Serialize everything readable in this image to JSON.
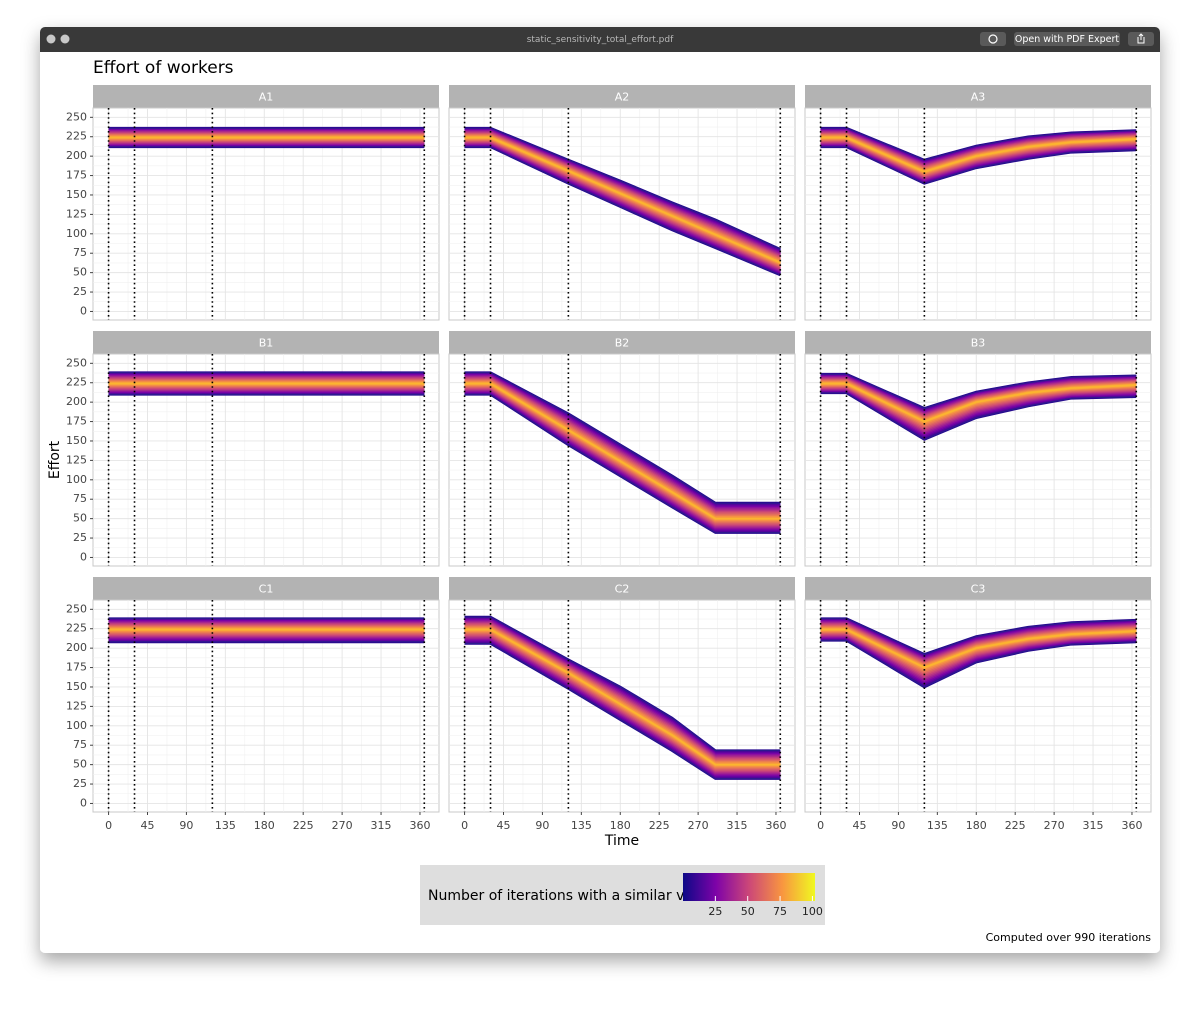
{
  "window": {
    "title": "static_sensitivity_total_effort.pdf",
    "button": "Open with PDF Expert"
  },
  "chart_data": {
    "type": "line",
    "title": "Effort of workers",
    "x_label": "Time",
    "y_label": "Effort",
    "xlim": [
      -18,
      382
    ],
    "ylim": [
      -11,
      262
    ],
    "xticks": [
      0,
      45,
      90,
      135,
      180,
      225,
      270,
      315,
      360
    ],
    "yticks": [
      0,
      25,
      50,
      75,
      100,
      125,
      150,
      175,
      200,
      225,
      250
    ],
    "vlines": [
      0,
      30,
      120,
      365
    ],
    "grid": true,
    "colorscale": [
      "#0d0887",
      "#7e03a8",
      "#cc4778",
      "#f89540",
      "#f0f921"
    ],
    "legend": {
      "title": "Number of iterations with a similar value",
      "lim": [
        0,
        102
      ],
      "ticks": [
        25,
        50,
        75,
        100
      ]
    },
    "caption": "Computed over 990 iterations",
    "x": [
      0,
      30,
      120,
      180,
      240,
      290,
      365
    ],
    "panels": [
      {
        "title": "A1",
        "series": [
          {
            "color": "#2b1d8f",
            "values": [
              212,
              212,
              212,
              212,
              212,
              212,
              212
            ]
          },
          {
            "color": "#fdb42f",
            "values": [
              224,
              224,
              224,
              224,
              224,
              224,
              224
            ]
          },
          {
            "color": "#2b1d8f",
            "values": [
              236,
              236,
              236,
              236,
              236,
              236,
              236
            ]
          }
        ]
      },
      {
        "title": "A2",
        "series": [
          {
            "color": "#2b1d8f",
            "values": [
              212,
              212,
              165,
              135,
              105,
              82,
              47
            ]
          },
          {
            "color": "#fdb42f",
            "values": [
              224,
              224,
              181,
              152,
              123,
              99,
              63
            ]
          },
          {
            "color": "#2b1d8f",
            "values": [
              236,
              236,
              195,
              168,
              140,
              118,
              80
            ]
          }
        ]
      },
      {
        "title": "A3",
        "series": [
          {
            "color": "#2b1d8f",
            "values": [
              212,
              212,
              165,
              185,
              197,
              205,
              208
            ]
          },
          {
            "color": "#fdb42f",
            "values": [
              224,
              224,
              180,
              200,
              212,
              218,
              222
            ]
          },
          {
            "color": "#2b1d8f",
            "values": [
              236,
              236,
              195,
              213,
              225,
              230,
              233
            ]
          }
        ]
      },
      {
        "title": "B1",
        "series": [
          {
            "color": "#2b1d8f",
            "values": [
              210,
              210,
              210,
              210,
              210,
              210,
              210
            ]
          },
          {
            "color": "#fdb42f",
            "values": [
              224,
              224,
              224,
              224,
              224,
              224,
              224
            ]
          },
          {
            "color": "#2b1d8f",
            "values": [
              238,
              238,
              238,
              238,
              238,
              238,
              238
            ]
          }
        ]
      },
      {
        "title": "B2",
        "series": [
          {
            "color": "#2b1d8f",
            "values": [
              210,
              210,
              145,
              105,
              65,
              32,
              32
            ]
          },
          {
            "color": "#fdb42f",
            "values": [
              224,
              224,
              164,
              124,
              84,
              50,
              50
            ]
          },
          {
            "color": "#2b1d8f",
            "values": [
              238,
              238,
              185,
              145,
              105,
              70,
              70
            ]
          }
        ]
      },
      {
        "title": "B3",
        "series": [
          {
            "color": "#2b1d8f",
            "values": [
              212,
              212,
              152,
              180,
              195,
              205,
              207
            ]
          },
          {
            "color": "#fdb42f",
            "values": [
              224,
              224,
              175,
              200,
              212,
              218,
              222
            ]
          },
          {
            "color": "#2b1d8f",
            "values": [
              236,
              236,
              192,
              213,
              225,
              232,
              234
            ]
          }
        ]
      },
      {
        "title": "C1",
        "series": [
          {
            "color": "#2b1d8f",
            "values": [
              208,
              208,
              208,
              208,
              208,
              208,
              208
            ]
          },
          {
            "color": "#fdb42f",
            "values": [
              224,
              224,
              224,
              224,
              224,
              224,
              224
            ]
          },
          {
            "color": "#2b1d8f",
            "values": [
              238,
              238,
              238,
              238,
              238,
              238,
              238
            ]
          }
        ]
      },
      {
        "title": "C2",
        "series": [
          {
            "color": "#2b1d8f",
            "values": [
              206,
              206,
              148,
              108,
              68,
              32,
              32
            ]
          },
          {
            "color": "#fdb42f",
            "values": [
              224,
              224,
              168,
              128,
              88,
              50,
              50
            ]
          },
          {
            "color": "#2b1d8f",
            "values": [
              240,
              240,
              185,
              150,
              110,
              68,
              68
            ]
          }
        ]
      },
      {
        "title": "C3",
        "series": [
          {
            "color": "#2b1d8f",
            "values": [
              210,
              210,
              150,
              182,
              197,
              205,
              208
            ]
          },
          {
            "color": "#fdb42f",
            "values": [
              224,
              224,
              175,
              200,
              212,
              218,
              222
            ]
          },
          {
            "color": "#2b1d8f",
            "values": [
              238,
              238,
              192,
              215,
              227,
              233,
              236
            ]
          }
        ]
      }
    ]
  }
}
